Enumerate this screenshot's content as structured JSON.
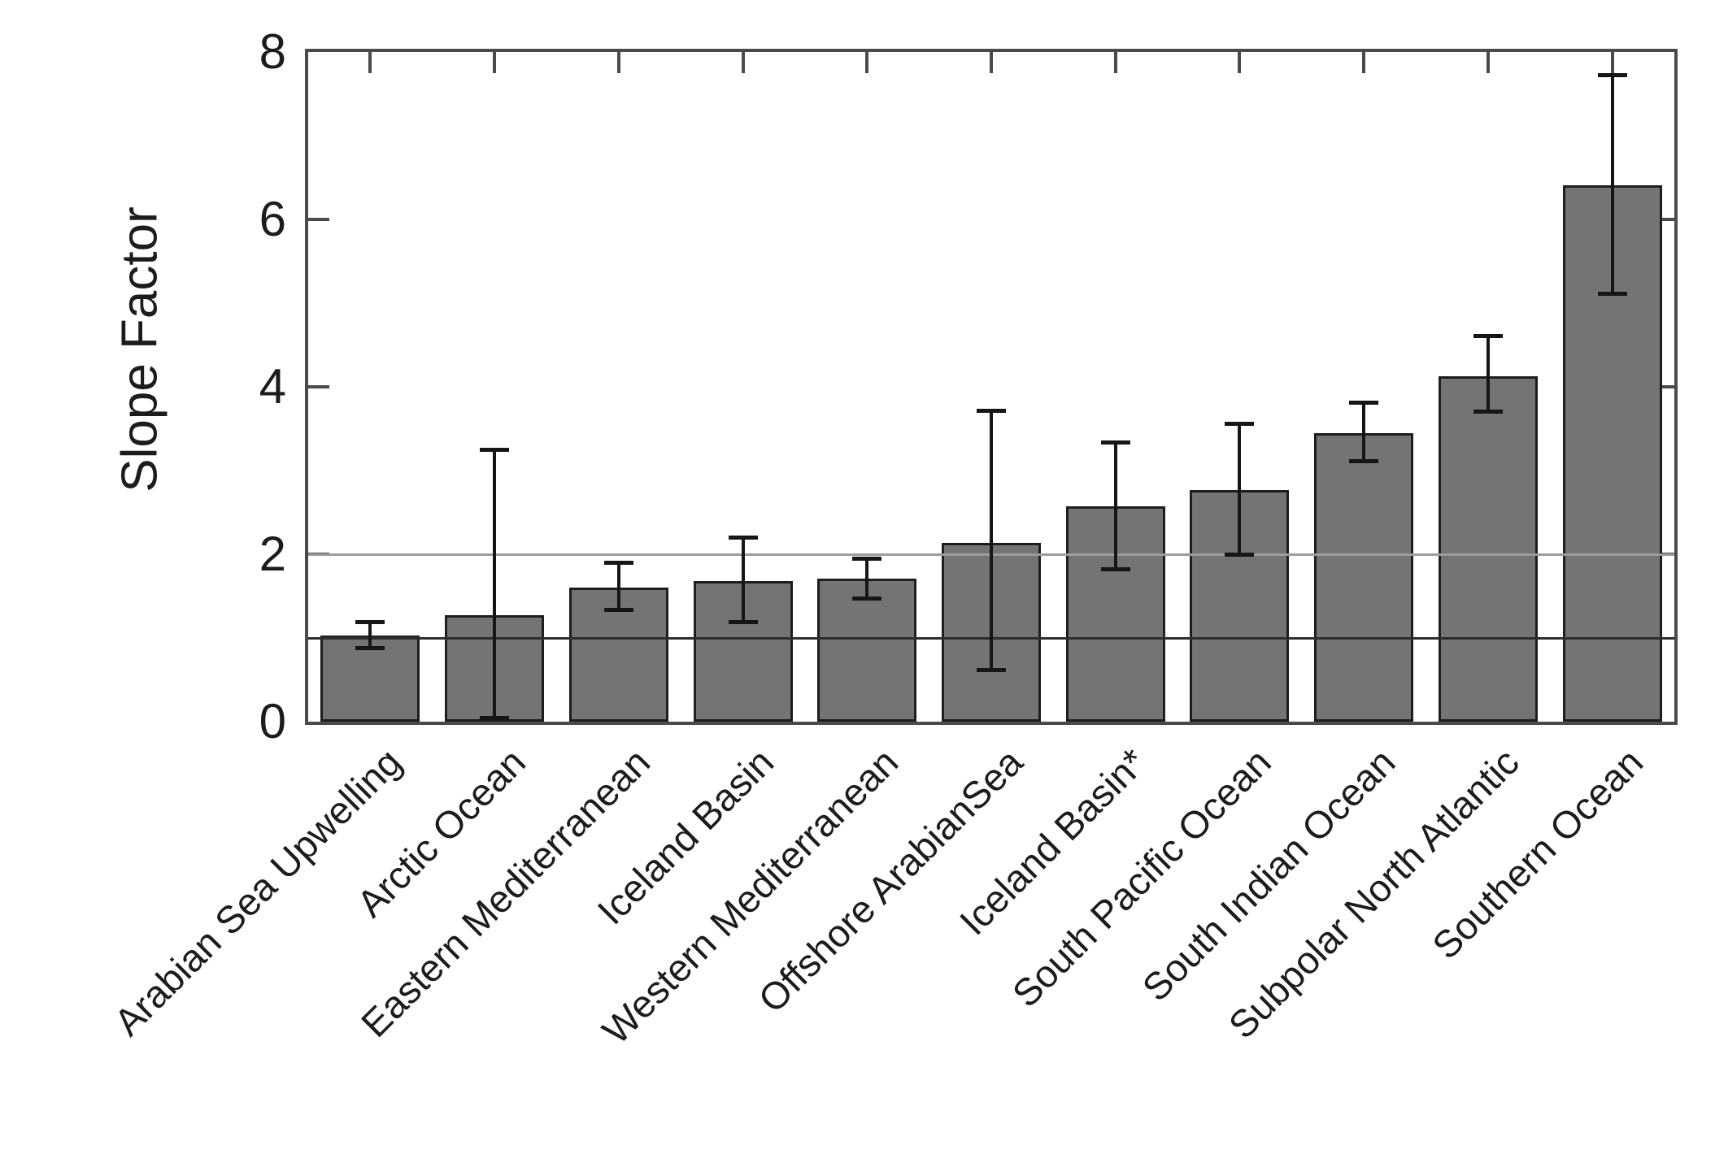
{
  "chart_data": {
    "type": "bar",
    "title": "",
    "xlabel": "",
    "ylabel": "Slope Factor",
    "ylim": [
      0,
      8
    ],
    "yticks": [
      0,
      2,
      4,
      6,
      8
    ],
    "grid": false,
    "legend": false,
    "reference_lines": [
      {
        "y": 1,
        "color": "#2e2e2e"
      },
      {
        "y": 2,
        "color": "#9c9c9c"
      }
    ],
    "categories": [
      "Arabian Sea Upwelling",
      "Arctic Ocean",
      "Eastern Mediterranean",
      "Iceland Basin",
      "Western Mediterranean",
      "Offshore ArabianSea",
      "Iceland Basin*",
      "South Pacific Ocean",
      "South Indian Ocean",
      "Subpolar North Atlantic",
      "Southern Ocean"
    ],
    "values": [
      1.03,
      1.27,
      1.6,
      1.68,
      1.71,
      2.14,
      2.57,
      2.77,
      3.45,
      4.13,
      6.41
    ],
    "error_low": [
      0.88,
      0.05,
      1.34,
      1.19,
      1.48,
      0.62,
      1.83,
      2.0,
      3.12,
      3.71,
      5.12
    ],
    "error_high": [
      1.19,
      3.25,
      1.9,
      2.2,
      1.95,
      3.72,
      3.34,
      3.56,
      3.82,
      4.61,
      7.73
    ],
    "colors": {
      "bar_fill": "#747474",
      "bar_edge": "#1e1e1e",
      "error_bar": "#161616",
      "axis": "#4a4a4a",
      "text": "#1c1c1c"
    }
  }
}
